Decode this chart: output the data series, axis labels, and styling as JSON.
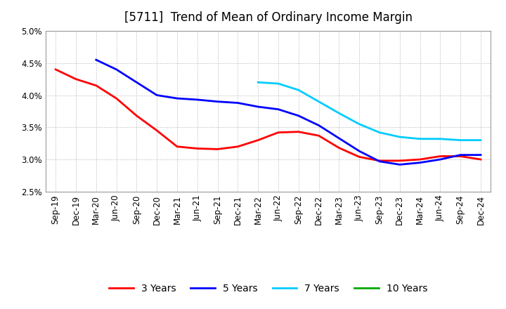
{
  "title": "[5711]  Trend of Mean of Ordinary Income Margin",
  "ylim": [
    0.025,
    0.05
  ],
  "yticks": [
    0.025,
    0.03,
    0.035,
    0.04,
    0.045,
    0.05
  ],
  "ytick_labels": [
    "2.5%",
    "3.0%",
    "3.5%",
    "4.0%",
    "4.5%",
    "5.0%"
  ],
  "xtick_labels": [
    "Sep-19",
    "Dec-19",
    "Mar-20",
    "Jun-20",
    "Sep-20",
    "Dec-20",
    "Mar-21",
    "Jun-21",
    "Sep-21",
    "Dec-21",
    "Mar-22",
    "Jun-22",
    "Sep-22",
    "Dec-22",
    "Mar-23",
    "Jun-23",
    "Sep-23",
    "Dec-23",
    "Mar-24",
    "Jun-24",
    "Sep-24",
    "Dec-24"
  ],
  "series": {
    "3 Years": {
      "color": "#ff0000",
      "data": [
        [
          "Sep-19",
          0.044
        ],
        [
          "Dec-19",
          0.0425
        ],
        [
          "Mar-20",
          0.0415
        ],
        [
          "Jun-20",
          0.0395
        ],
        [
          "Sep-20",
          0.0368
        ],
        [
          "Dec-20",
          0.0345
        ],
        [
          "Mar-21",
          0.032
        ],
        [
          "Jun-21",
          0.0317
        ],
        [
          "Sep-21",
          0.0316
        ],
        [
          "Dec-21",
          0.032
        ],
        [
          "Mar-22",
          0.033
        ],
        [
          "Jun-22",
          0.0342
        ],
        [
          "Sep-22",
          0.0343
        ],
        [
          "Dec-22",
          0.0337
        ],
        [
          "Mar-23",
          0.0318
        ],
        [
          "Jun-23",
          0.0304
        ],
        [
          "Sep-23",
          0.0298
        ],
        [
          "Dec-23",
          0.0298
        ],
        [
          "Mar-24",
          0.03
        ],
        [
          "Jun-24",
          0.0305
        ],
        [
          "Sep-24",
          0.0305
        ],
        [
          "Dec-24",
          0.03
        ]
      ]
    },
    "5 Years": {
      "color": "#0000ff",
      "data": [
        [
          "Mar-20",
          0.0455
        ],
        [
          "Jun-20",
          0.044
        ],
        [
          "Sep-20",
          0.042
        ],
        [
          "Dec-20",
          0.04
        ],
        [
          "Mar-21",
          0.0395
        ],
        [
          "Jun-21",
          0.0393
        ],
        [
          "Sep-21",
          0.039
        ],
        [
          "Dec-21",
          0.0388
        ],
        [
          "Mar-22",
          0.0382
        ],
        [
          "Jun-22",
          0.0378
        ],
        [
          "Sep-22",
          0.0368
        ],
        [
          "Dec-22",
          0.0353
        ],
        [
          "Mar-23",
          0.0333
        ],
        [
          "Jun-23",
          0.0313
        ],
        [
          "Sep-23",
          0.0297
        ],
        [
          "Dec-23",
          0.0292
        ],
        [
          "Mar-24",
          0.0295
        ],
        [
          "Jun-24",
          0.03
        ],
        [
          "Sep-24",
          0.0307
        ],
        [
          "Dec-24",
          0.0307
        ]
      ]
    },
    "7 Years": {
      "color": "#00ccff",
      "data": [
        [
          "Mar-22",
          0.042
        ],
        [
          "Jun-22",
          0.0418
        ],
        [
          "Sep-22",
          0.0408
        ],
        [
          "Dec-22",
          0.039
        ],
        [
          "Mar-23",
          0.0372
        ],
        [
          "Jun-23",
          0.0355
        ],
        [
          "Sep-23",
          0.0342
        ],
        [
          "Dec-23",
          0.0335
        ],
        [
          "Mar-24",
          0.0332
        ],
        [
          "Jun-24",
          0.0332
        ],
        [
          "Sep-24",
          0.033
        ],
        [
          "Dec-24",
          0.033
        ]
      ]
    },
    "10 Years": {
      "color": "#00aa00",
      "data": []
    }
  },
  "background_color": "#ffffff",
  "grid_color": "#b0b0b0",
  "title_fontsize": 12,
  "legend_fontsize": 10,
  "tick_fontsize": 8.5
}
